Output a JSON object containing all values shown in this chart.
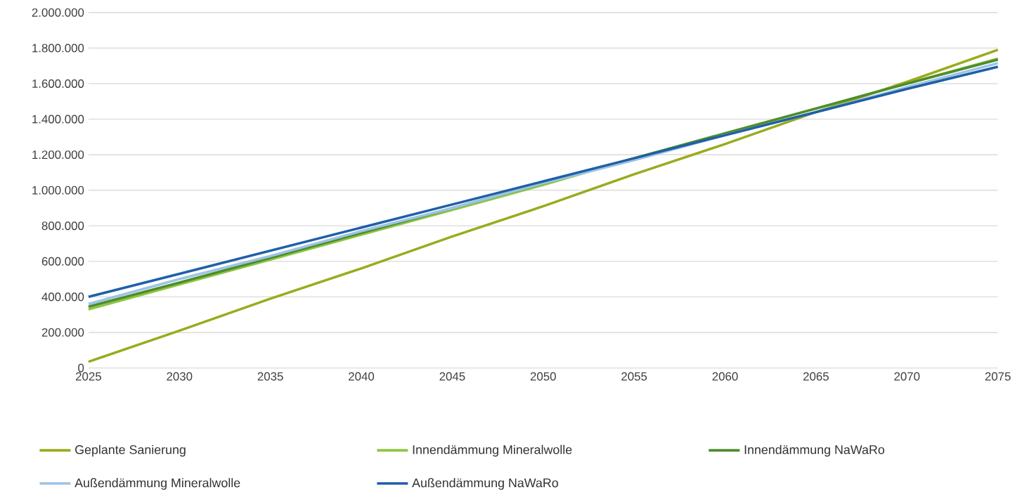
{
  "chart_data": {
    "type": "line",
    "x": [
      2025,
      2030,
      2035,
      2040,
      2045,
      2050,
      2055,
      2060,
      2065,
      2070,
      2075
    ],
    "series": [
      {
        "name": "Geplante Sanierung",
        "color": "#9aab1c",
        "values": [
          35000,
          210000,
          390000,
          560000,
          740000,
          910000,
          1090000,
          1260000,
          1440000,
          1610000,
          1790000
        ]
      },
      {
        "name": "Innendämmung Mineralwolle",
        "color": "#8dc63f",
        "values": [
          330000,
          470000,
          610000,
          750000,
          890000,
          1030000,
          1180000,
          1320000,
          1460000,
          1600000,
          1740000
        ]
      },
      {
        "name": "Innendämmung NaWaRo",
        "color": "#4e8c2e",
        "values": [
          345000,
          480000,
          620000,
          760000,
          900000,
          1040000,
          1180000,
          1320000,
          1460000,
          1600000,
          1735000
        ]
      },
      {
        "name": "Außendämmung Mineralwolle",
        "color": "#9dc3e6",
        "values": [
          360000,
          500000,
          630000,
          770000,
          900000,
          1040000,
          1170000,
          1310000,
          1440000,
          1580000,
          1715000
        ]
      },
      {
        "name": "Außendämmung NaWaRo",
        "color": "#1f5fa8",
        "values": [
          400000,
          530000,
          660000,
          790000,
          920000,
          1050000,
          1180000,
          1310000,
          1440000,
          1570000,
          1695000
        ]
      }
    ],
    "xlim": [
      2025,
      2075
    ],
    "xticks": [
      2025,
      2030,
      2035,
      2040,
      2045,
      2050,
      2055,
      2060,
      2065,
      2070,
      2075
    ],
    "ylim": [
      0,
      2000000
    ],
    "yticks": [
      {
        "value": 0,
        "label": "0"
      },
      {
        "value": 200000,
        "label": "200.000"
      },
      {
        "value": 400000,
        "label": "400.000"
      },
      {
        "value": 600000,
        "label": "600.000"
      },
      {
        "value": 800000,
        "label": "800.000"
      },
      {
        "value": 1000000,
        "label": "1.000.000"
      },
      {
        "value": 1200000,
        "label": "1.200.000"
      },
      {
        "value": 1400000,
        "label": "1.400.000"
      },
      {
        "value": 1600000,
        "label": "1.600.000"
      },
      {
        "value": 1800000,
        "label": "1.800.000"
      },
      {
        "value": 2000000,
        "label": "2.000.000"
      }
    ],
    "grid": "y",
    "legend": "bottom",
    "marker": "none",
    "line_style": "solid"
  }
}
